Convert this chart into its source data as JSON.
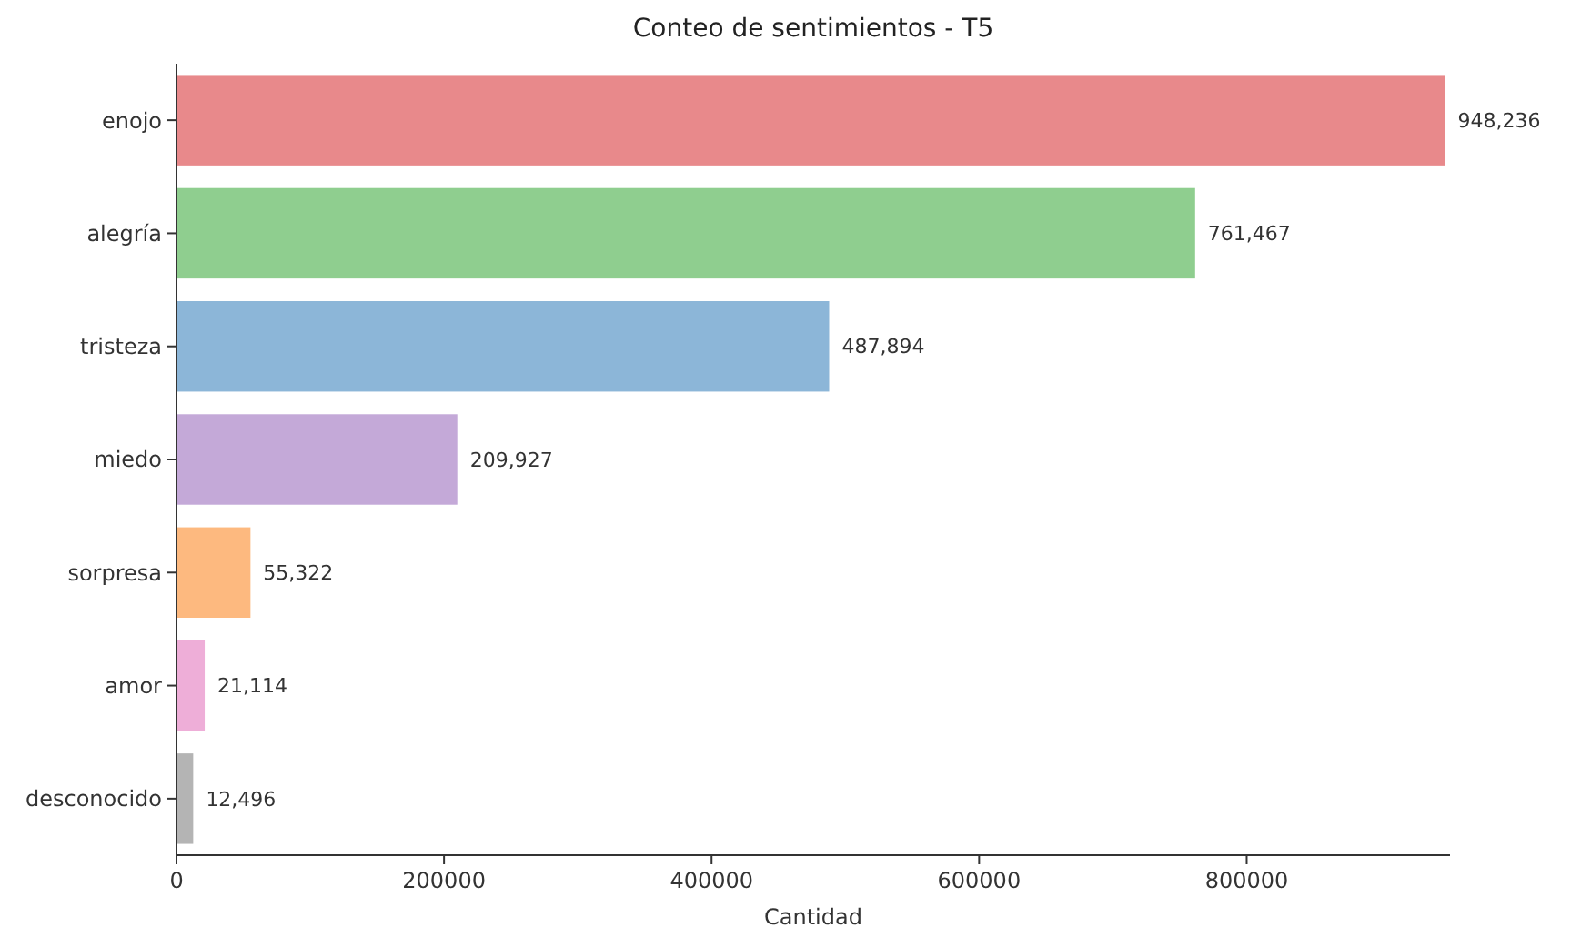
{
  "chart_data": {
    "type": "bar",
    "orientation": "horizontal",
    "title": "Conteo de sentimientos - T5",
    "xlabel": "Cantidad",
    "categories": [
      "enojo",
      "alegría",
      "tristeza",
      "miedo",
      "sorpresa",
      "amor",
      "desconocido"
    ],
    "values": [
      948236,
      761467,
      487894,
      209927,
      55322,
      21114,
      12496
    ],
    "value_labels": [
      "948,236",
      "761,467",
      "487,894",
      "209,927",
      "55,322",
      "21,114",
      "12,496"
    ],
    "colors": [
      "#e8898b",
      "#8fce8f",
      "#8cb6d8",
      "#c4a9d8",
      "#fdb97f",
      "#eeaed8",
      "#b4b4b4"
    ],
    "xlim": [
      0,
      952000
    ],
    "xticks": [
      0,
      200000,
      400000,
      600000,
      800000
    ],
    "grid": false
  }
}
